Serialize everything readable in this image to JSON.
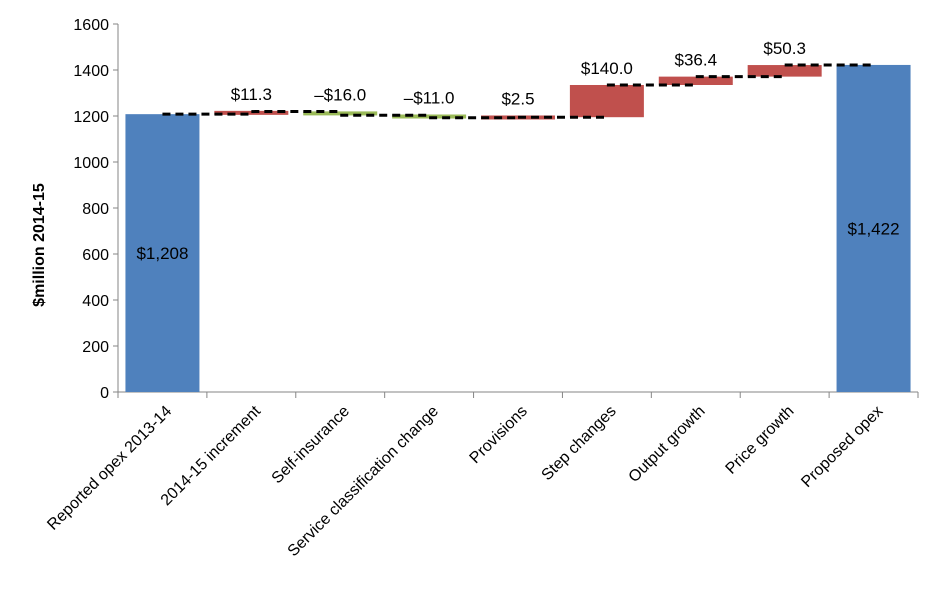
{
  "chart_data": {
    "type": "bar",
    "subtype": "waterfall",
    "title": "",
    "xlabel": "",
    "ylabel": "$million 2014-15",
    "ylim": [
      0,
      1600
    ],
    "yticks": [
      0,
      200,
      400,
      600,
      800,
      1000,
      1200,
      1400,
      1600
    ],
    "grid": false,
    "categories": [
      "Reported opex 2013-14",
      "2014-15 increment",
      "Self-insurance",
      "Service classification change",
      "Provisions",
      "Step changes",
      "Output growth",
      "Price growth",
      "Proposed opex"
    ],
    "steps": [
      {
        "kind": "total",
        "value": 1208,
        "label": "$1,208"
      },
      {
        "kind": "delta",
        "value": 11.3,
        "label": "$11.3"
      },
      {
        "kind": "delta",
        "value": -16.0,
        "label": "–$16.0"
      },
      {
        "kind": "delta",
        "value": -11.0,
        "label": "–$11.0"
      },
      {
        "kind": "delta",
        "value": 2.5,
        "label": "$2.5"
      },
      {
        "kind": "delta",
        "value": 140.0,
        "label": "$140.0"
      },
      {
        "kind": "delta",
        "value": 36.4,
        "label": "$36.4"
      },
      {
        "kind": "delta",
        "value": 50.3,
        "label": "$50.3"
      },
      {
        "kind": "total",
        "value": 1422,
        "label": "$1,422"
      }
    ],
    "colors": {
      "total": "#4f81bd",
      "increase": "#c0504d",
      "decrease": "#9bbb59",
      "connector": "#000000"
    }
  }
}
